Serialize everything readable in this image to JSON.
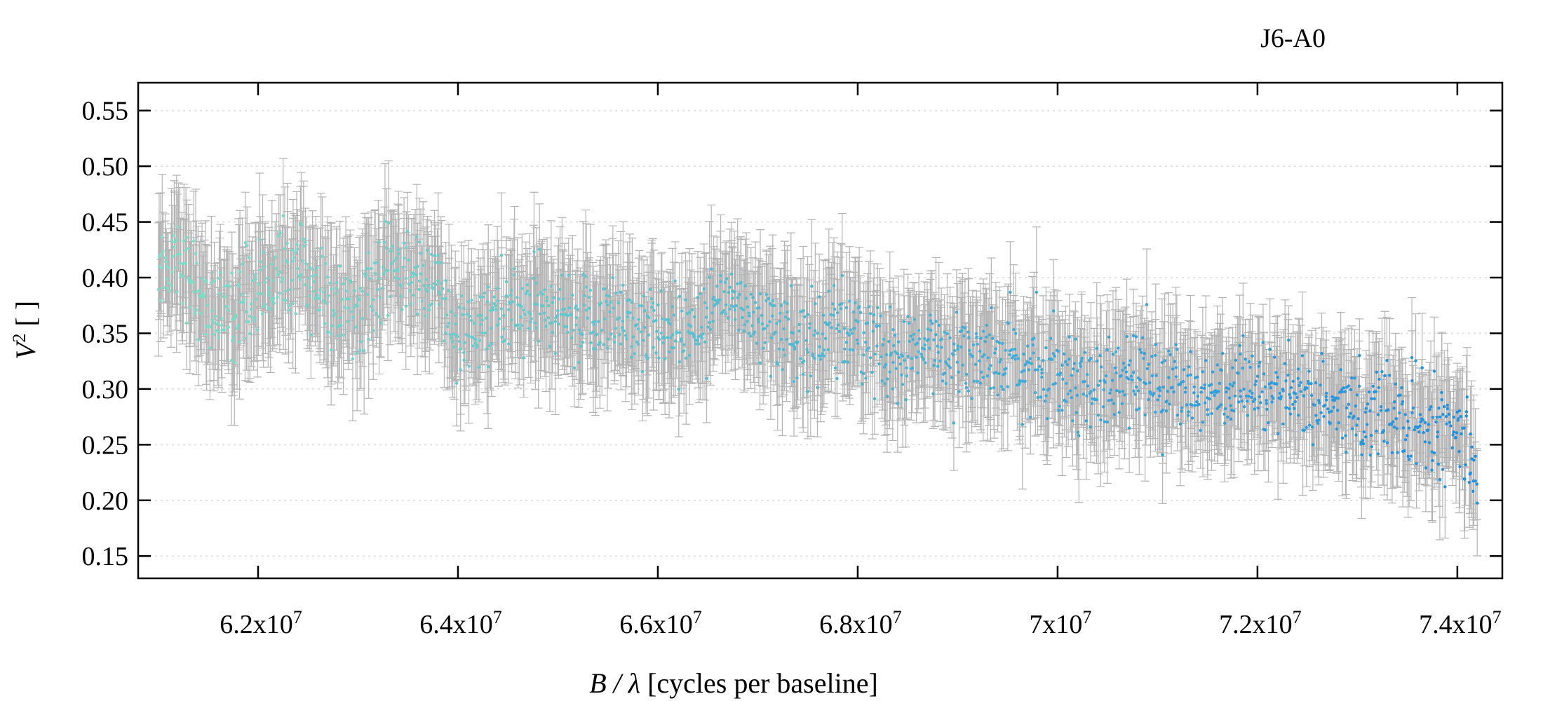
{
  "chart_data": {
    "type": "scatter",
    "title": "J6-A0",
    "xlabel_italic": "B / λ",
    "xlabel_rest": " [cycles per baseline]",
    "ylabel_base": "V",
    "ylabel_sup": "2",
    "ylabel_rest": " [ ]",
    "xlim": [
      60800000,
      74450000
    ],
    "ylim": [
      0.13,
      0.575
    ],
    "x_ticks": [
      {
        "value": 62000000,
        "mantissa": "6.2x10",
        "exp": "7"
      },
      {
        "value": 64000000,
        "mantissa": "6.4x10",
        "exp": "7"
      },
      {
        "value": 66000000,
        "mantissa": "6.6x10",
        "exp": "7"
      },
      {
        "value": 68000000,
        "mantissa": "6.8x10",
        "exp": "7"
      },
      {
        "value": 70000000,
        "mantissa": "7x10",
        "exp": "7"
      },
      {
        "value": 72000000,
        "mantissa": "7.2x10",
        "exp": "7"
      },
      {
        "value": 74000000,
        "mantissa": "7.4x10",
        "exp": "7"
      }
    ],
    "y_ticks": [
      "0.15",
      "0.20",
      "0.25",
      "0.30",
      "0.35",
      "0.40",
      "0.45",
      "0.50",
      "0.55"
    ],
    "grid": "horizontal dotted",
    "point_color_start": "#7de0c8",
    "point_color_end": "#1e90e0",
    "errorbar_color": "#b4b4b4",
    "series": [
      {
        "points_count_estimate": 1800,
        "trend_x": [
          61000000,
          61200000,
          61600000,
          62000000,
          62400000,
          62800000,
          63000000,
          63400000,
          63800000,
          64000000,
          64400000,
          64800000,
          65200000,
          65600000,
          66000000,
          66400000,
          66800000,
          67000000,
          67400000,
          67800000,
          68000000,
          68400000,
          68800000,
          69200000,
          69600000,
          70000000,
          70400000,
          70800000,
          71200000,
          71600000,
          72000000,
          72400000,
          72800000,
          73200000,
          73600000,
          74000000,
          74200000
        ],
        "trend_y": [
          0.41,
          0.42,
          0.36,
          0.39,
          0.41,
          0.37,
          0.37,
          0.41,
          0.39,
          0.34,
          0.37,
          0.37,
          0.36,
          0.37,
          0.35,
          0.36,
          0.38,
          0.37,
          0.34,
          0.36,
          0.35,
          0.32,
          0.34,
          0.33,
          0.32,
          0.32,
          0.3,
          0.31,
          0.3,
          0.3,
          0.29,
          0.3,
          0.28,
          0.28,
          0.27,
          0.26,
          0.23
        ],
        "noise_sd": 0.02,
        "errorbar_half_range": [
          0.03,
          0.06
        ]
      }
    ]
  }
}
